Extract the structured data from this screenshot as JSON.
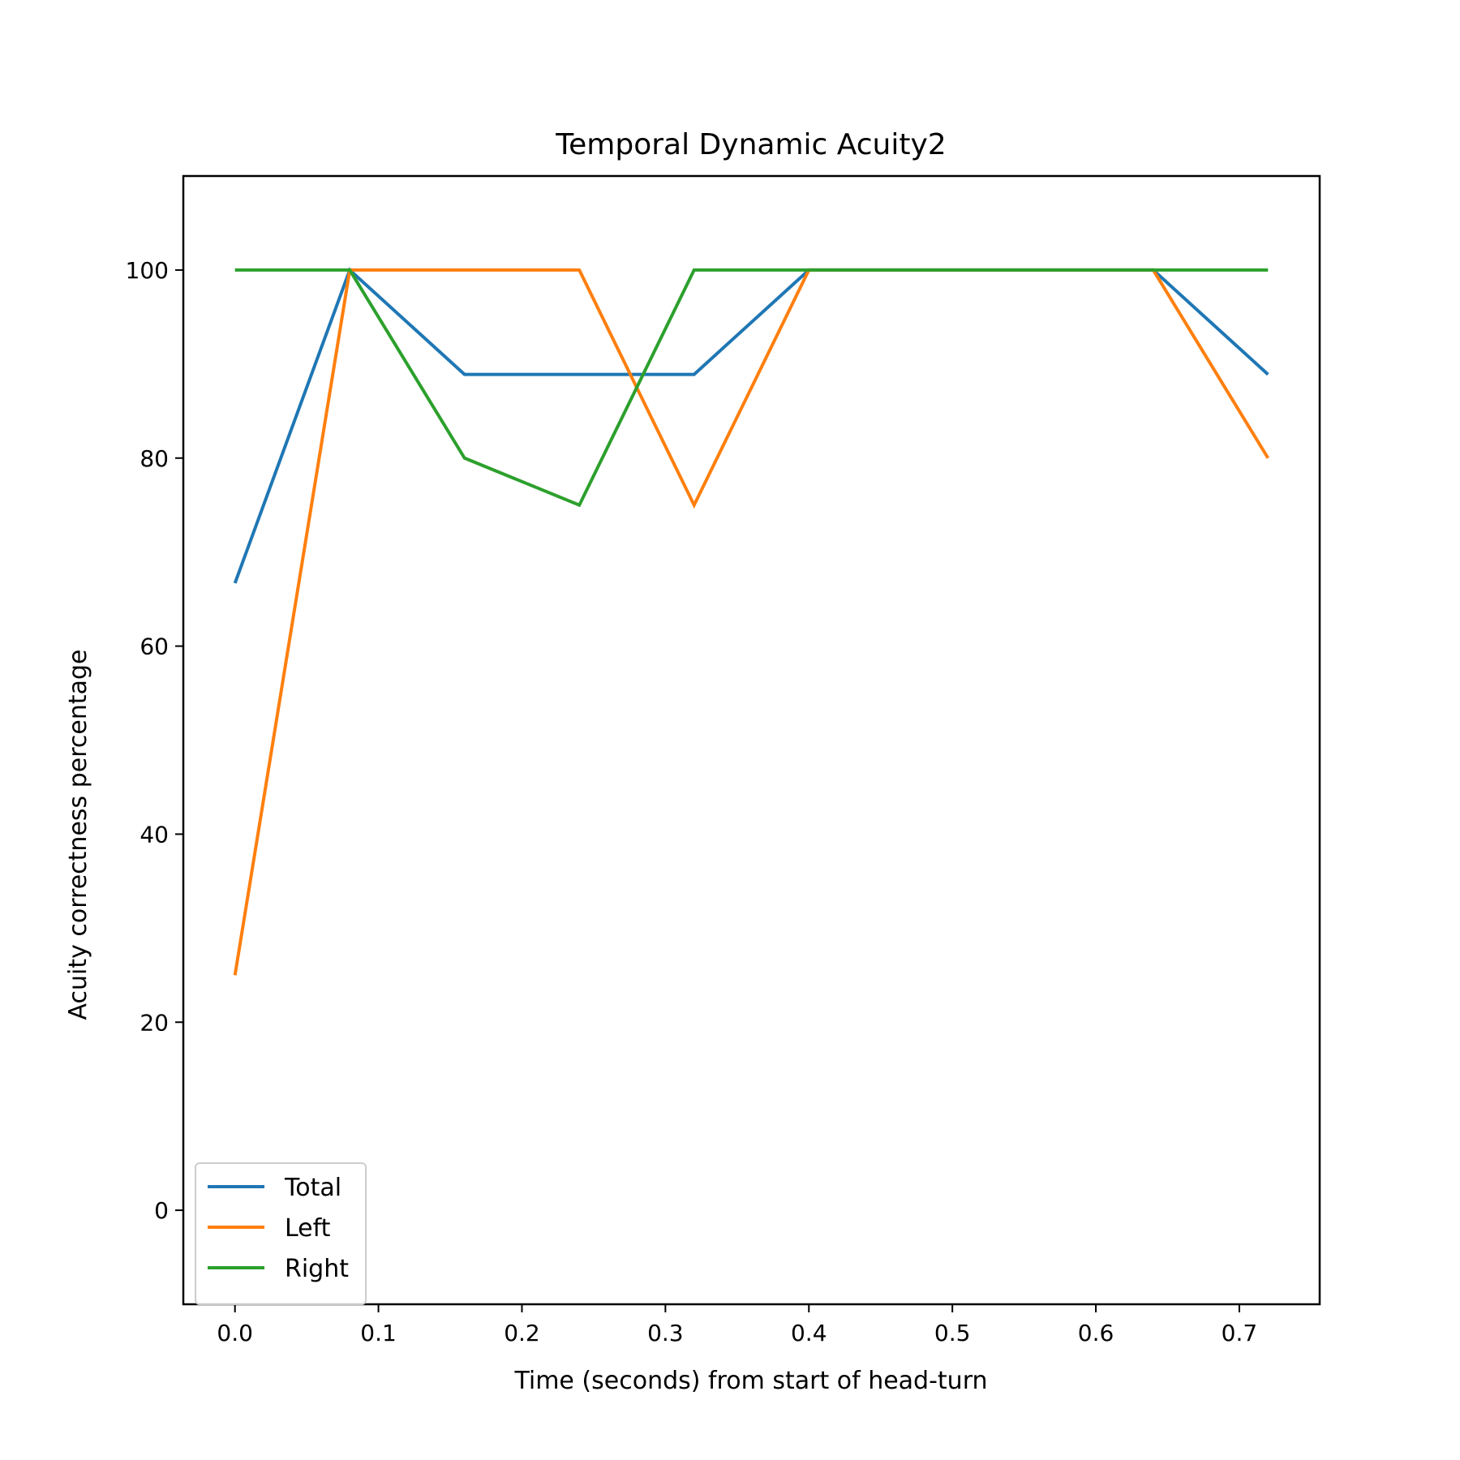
{
  "chart_data": {
    "type": "line",
    "title": "Temporal Dynamic Acuity2",
    "xlabel": "Time (seconds) from start of head-turn",
    "ylabel": "Acuity correctness percentage",
    "x": [
      0.0,
      0.08,
      0.16,
      0.24,
      0.32,
      0.4,
      0.48,
      0.56,
      0.64,
      0.72
    ],
    "xlim": [
      -0.036,
      0.756
    ],
    "ylim": [
      -10,
      110
    ],
    "xticks": [
      "0.0",
      "0.1",
      "0.2",
      "0.3",
      "0.4",
      "0.5",
      "0.6",
      "0.7"
    ],
    "yticks": [
      "0",
      "20",
      "40",
      "60",
      "80",
      "100"
    ],
    "grid": false,
    "legend_position": "lower-left",
    "series": [
      {
        "name": "Total",
        "color": "#1f77b4",
        "values": [
          66.7,
          100,
          88.9,
          88.9,
          88.9,
          100,
          100,
          100,
          100,
          88.9
        ]
      },
      {
        "name": "Left",
        "color": "#ff7f0e",
        "values": [
          25,
          100,
          100,
          100,
          75,
          100,
          100,
          100,
          100,
          80
        ]
      },
      {
        "name": "Right",
        "color": "#2ca02c",
        "values": [
          100,
          100,
          80,
          75,
          100,
          100,
          100,
          100,
          100,
          100
        ]
      }
    ]
  }
}
